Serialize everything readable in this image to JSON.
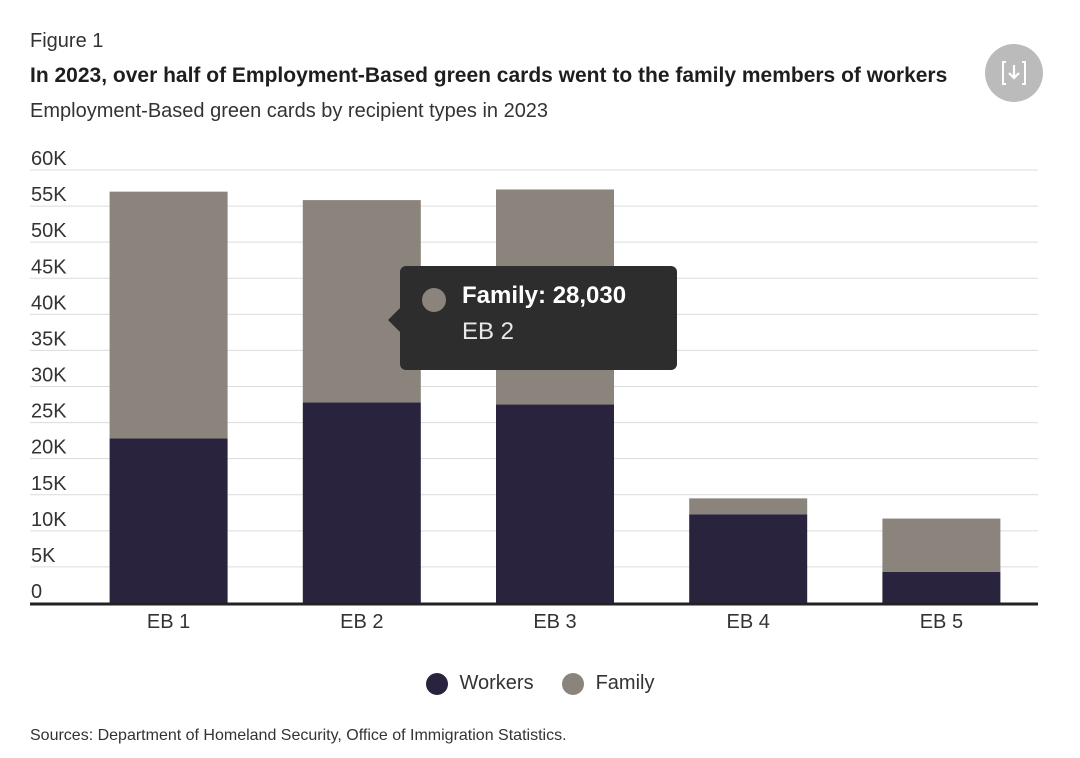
{
  "figure_label": "Figure 1",
  "title": "In 2023, over half of Employment-Based green cards went to the family members of workers",
  "subtitle": "Employment-Based green cards by recipient types in 2023",
  "source": "Sources: Department of Homeland Security, Office of Immigration Statistics.",
  "colors": {
    "workers": "#29233d",
    "family": "#8b847d",
    "grid": "#dcdcdc",
    "axis": "#222222"
  },
  "icons": {
    "download": "download-icon"
  },
  "tooltip": {
    "series": "Family",
    "value_label": "Family: 28,030",
    "category": "EB 2"
  },
  "chart_data": {
    "type": "bar",
    "stacked": true,
    "title": "In 2023, over half of Employment-Based green cards went to the family members of workers",
    "subtitle": "Employment-Based green cards by recipient types in 2023",
    "categories": [
      "EB 1",
      "EB 2",
      "EB 3",
      "EB 4",
      "EB 5"
    ],
    "series": [
      {
        "name": "Workers",
        "values": [
          22800,
          27800,
          27500,
          12300,
          4300
        ]
      },
      {
        "name": "Family",
        "values": [
          34200,
          28030,
          29800,
          2200,
          7400
        ]
      }
    ],
    "ylim": [
      0,
      60000
    ],
    "yticks": [
      0,
      5000,
      10000,
      15000,
      20000,
      25000,
      30000,
      35000,
      40000,
      45000,
      50000,
      55000,
      60000
    ],
    "ytick_labels": [
      "0",
      "5K",
      "10K",
      "15K",
      "20K",
      "25K",
      "30K",
      "35K",
      "40K",
      "45K",
      "50K",
      "55K",
      "60K"
    ],
    "xlabel": "",
    "ylabel": "",
    "grid": true,
    "legend": [
      "Workers",
      "Family"
    ]
  }
}
